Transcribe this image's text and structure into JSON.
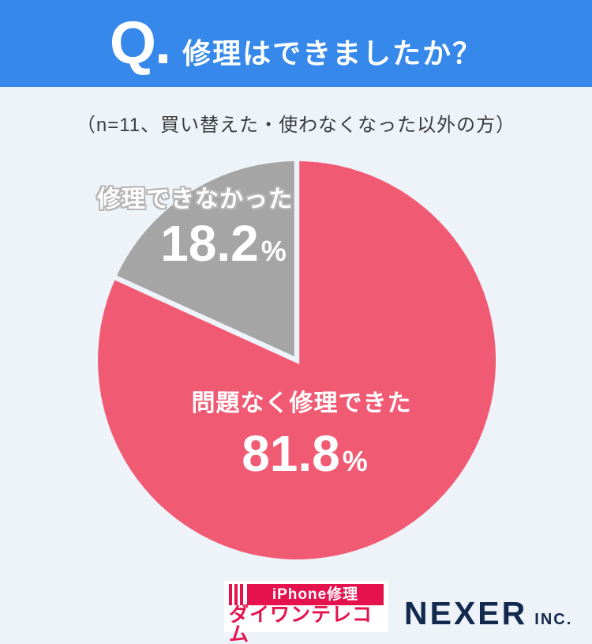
{
  "colors": {
    "background": "#eef3fa",
    "header_blue": "#3688ea",
    "slice_ok_pink": "#f15a73",
    "slice_ng_gray": "#a5a5a5",
    "daiwan_red": "#e5124d",
    "nexer_navy": "#14294e"
  },
  "header": {
    "q_label": "Q.",
    "title": "修理はできましたか？"
  },
  "subtitle": "（n=11、買い替えた・使わなくなった以外の方）",
  "chart_data": {
    "type": "pie",
    "title": "修理はできましたか？",
    "note": "（n=11、買い替えた・使わなくなった以外の方）",
    "n": 11,
    "start_angle_deg": 0,
    "direction": "clockwise",
    "slices": [
      {
        "label": "問題なく修理できた",
        "value": 81.8,
        "unit": "%",
        "color": "#f15a73"
      },
      {
        "label": "修理できなかった",
        "value": 18.2,
        "unit": "%",
        "color": "#a5a5a5"
      }
    ]
  },
  "footer": {
    "daiwan": {
      "banner_text": "iPhone修理",
      "company_name": "ダイワンテレコム"
    },
    "nexer": {
      "company_name": "NEXER",
      "suffix": "INC."
    }
  }
}
